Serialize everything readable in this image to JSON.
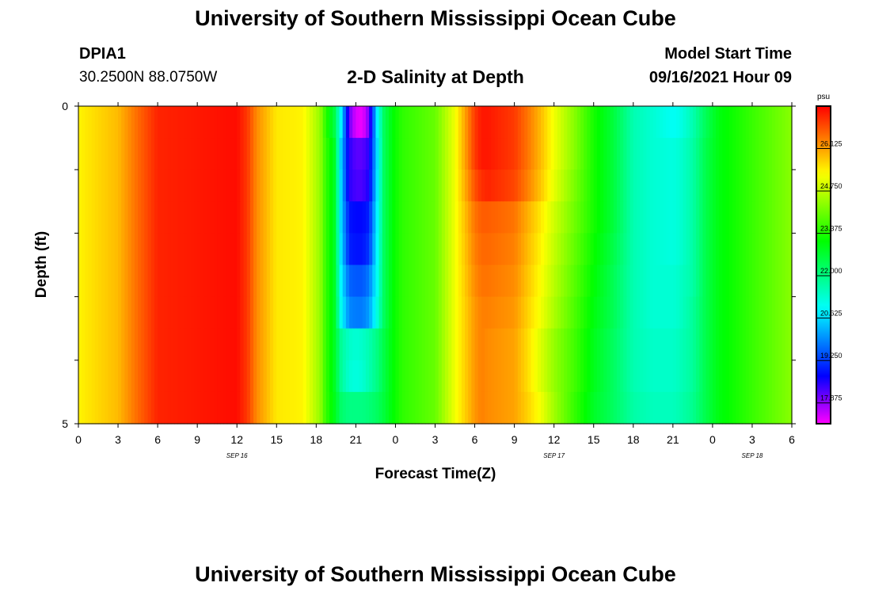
{
  "header": {
    "title": "University of Southern Mississippi Ocean Cube",
    "station_id": "DPIA1",
    "station_coords": "30.2500N  88.0750W",
    "plot_title": "2-D Salinity at Depth",
    "model_label": "Model Start Time",
    "model_time": "09/16/2021 Hour 09"
  },
  "footer": {
    "title": "University of Southern Mississippi Ocean Cube"
  },
  "chart_data": {
    "type": "heatmap",
    "title": "2-D Salinity at Depth",
    "xlabel": "Forecast Time(Z)",
    "ylabel": "Depth (ft)",
    "x_hours_from_sep16_00z": [
      0,
      54
    ],
    "y_range_ft": [
      0,
      5
    ],
    "x_tick_labels": [
      "0",
      "3",
      "6",
      "9",
      "12",
      "15",
      "18",
      "21",
      "0",
      "3",
      "6",
      "9",
      "12",
      "15",
      "18",
      "21",
      "0",
      "3",
      "6"
    ],
    "y_tick_labels": [
      "0",
      "5"
    ],
    "date_labels": [
      {
        "label": "SEP 16",
        "hour": 12
      },
      {
        "label": "SEP 17",
        "hour": 36
      },
      {
        "label": "SEP 18",
        "hour": 51
      }
    ],
    "colorbar": {
      "unit": "psu",
      "min": 17.2,
      "max": 27.5,
      "tick_values": [
        26.125,
        24.75,
        23.375,
        22.0,
        20.625,
        19.25,
        17.875
      ],
      "tick_labels": [
        "26.125",
        "24.750",
        "23.375",
        "22.000",
        "20.625",
        "19.250",
        "17.875"
      ]
    },
    "depth_levels_ft": [
      0.25,
      0.75,
      1.25,
      1.75,
      2.25,
      2.75,
      3.25,
      3.75,
      4.25,
      4.75
    ],
    "series": [
      {
        "name": "salinity_by_hour",
        "unit": "psu",
        "hours": [
          0,
          3,
          4.5,
          6,
          9,
          12,
          12.8,
          13.5,
          15,
          17,
          18.3,
          18.7,
          19.4,
          19.9,
          20.5,
          21.0,
          21.5,
          22.0,
          22.6,
          23.1,
          23.8,
          24.5,
          27,
          28.5,
          30,
          30.5,
          31,
          33,
          34,
          35,
          36,
          37.5,
          39,
          40.5,
          42,
          43.5,
          45,
          45.5,
          46.5,
          47.5,
          48.5,
          51,
          54
        ],
        "values_top_to_bottom": [
          [
            25.4,
            25.9,
            26.6,
            27.2,
            27.3,
            27.4,
            27.0,
            26.3,
            25.5,
            25.4,
            24.4,
            23.5,
            22.5,
            20.8,
            18.1,
            17.4,
            17.3,
            18.0,
            20.8,
            22.3,
            23.1,
            23.5,
            24.0,
            25.2,
            27.0,
            27.3,
            27.3,
            27.0,
            26.5,
            25.9,
            25.2,
            24.3,
            23.3,
            22.6,
            21.6,
            21.3,
            21.0,
            21.1,
            21.6,
            22.4,
            23.0,
            23.6,
            24.3
          ],
          [
            25.4,
            25.9,
            26.6,
            27.2,
            27.3,
            27.4,
            27.0,
            26.3,
            25.5,
            25.4,
            24.4,
            23.6,
            22.8,
            20.4,
            18.5,
            18.2,
            18.2,
            18.5,
            20.6,
            22.3,
            23.1,
            23.5,
            24.0,
            25.2,
            27.0,
            27.3,
            27.3,
            27.0,
            26.5,
            25.9,
            25.2,
            24.3,
            23.3,
            22.6,
            21.6,
            21.3,
            21.2,
            21.3,
            21.7,
            22.5,
            23.0,
            23.6,
            24.3
          ],
          [
            25.4,
            25.9,
            26.6,
            27.2,
            27.3,
            27.4,
            27.0,
            26.3,
            25.5,
            25.4,
            24.4,
            23.6,
            22.8,
            20.5,
            18.5,
            18.3,
            18.3,
            18.6,
            20.7,
            22.3,
            23.1,
            23.5,
            24.0,
            25.2,
            26.8,
            27.1,
            27.2,
            26.9,
            26.4,
            25.8,
            25.1,
            24.2,
            23.3,
            22.6,
            21.6,
            21.3,
            21.2,
            21.3,
            21.7,
            22.5,
            23.0,
            23.6,
            24.3
          ],
          [
            25.4,
            25.9,
            26.6,
            27.2,
            27.3,
            27.4,
            27.0,
            26.3,
            25.5,
            25.4,
            24.4,
            23.6,
            22.8,
            20.5,
            18.9,
            18.8,
            18.8,
            19.0,
            20.8,
            22.3,
            23.1,
            23.5,
            24.0,
            25.2,
            26.5,
            26.7,
            26.7,
            26.5,
            26.0,
            25.5,
            24.9,
            24.1,
            23.3,
            22.6,
            21.6,
            21.3,
            21.2,
            21.3,
            21.7,
            22.5,
            23.0,
            23.6,
            24.3
          ],
          [
            25.4,
            25.9,
            26.6,
            27.2,
            27.3,
            27.4,
            27.0,
            26.3,
            25.5,
            25.4,
            24.4,
            23.6,
            22.8,
            20.6,
            19.0,
            18.9,
            18.9,
            19.2,
            20.9,
            22.3,
            23.1,
            23.5,
            24.0,
            25.2,
            26.4,
            26.6,
            26.6,
            26.4,
            25.9,
            25.4,
            24.8,
            24.0,
            23.2,
            22.5,
            21.6,
            21.3,
            21.2,
            21.3,
            21.7,
            22.5,
            23.0,
            23.6,
            24.3
          ],
          [
            25.4,
            25.9,
            26.6,
            27.2,
            27.3,
            27.4,
            27.0,
            26.3,
            25.5,
            25.4,
            24.4,
            23.6,
            22.8,
            20.8,
            19.6,
            19.5,
            19.5,
            19.8,
            21.0,
            22.3,
            23.1,
            23.5,
            24.0,
            25.2,
            26.3,
            26.5,
            26.5,
            26.3,
            25.8,
            25.3,
            24.7,
            23.9,
            23.1,
            22.4,
            21.6,
            21.3,
            21.3,
            21.4,
            21.7,
            22.5,
            23.0,
            23.6,
            24.3
          ],
          [
            25.4,
            25.9,
            26.6,
            27.2,
            27.3,
            27.4,
            27.0,
            26.3,
            25.5,
            25.4,
            24.4,
            23.6,
            22.8,
            21.0,
            19.9,
            19.8,
            19.8,
            20.1,
            21.2,
            22.3,
            23.1,
            23.5,
            24.0,
            25.2,
            26.2,
            26.4,
            26.4,
            26.2,
            25.7,
            25.2,
            24.6,
            23.8,
            23.0,
            22.4,
            21.6,
            21.3,
            21.3,
            21.4,
            21.8,
            22.5,
            23.0,
            23.6,
            24.3
          ],
          [
            25.4,
            25.9,
            26.6,
            27.2,
            27.3,
            27.4,
            27.0,
            26.3,
            25.5,
            25.4,
            24.4,
            23.6,
            22.8,
            21.8,
            21.4,
            21.3,
            21.4,
            21.6,
            22.0,
            22.5,
            23.1,
            23.5,
            24.0,
            25.2,
            26.2,
            26.4,
            26.3,
            26.1,
            25.6,
            25.0,
            24.4,
            23.7,
            22.9,
            22.3,
            21.6,
            21.4,
            21.4,
            21.5,
            21.8,
            22.5,
            23.0,
            23.6,
            24.3
          ],
          [
            25.4,
            25.9,
            26.6,
            27.2,
            27.3,
            27.4,
            27.0,
            26.3,
            25.5,
            25.4,
            24.4,
            23.6,
            22.8,
            21.8,
            21.3,
            21.2,
            21.3,
            21.6,
            22.0,
            22.5,
            23.1,
            23.5,
            24.0,
            25.2,
            26.2,
            26.4,
            26.3,
            26.1,
            25.6,
            25.0,
            24.4,
            23.7,
            22.9,
            22.3,
            21.6,
            21.4,
            21.4,
            21.5,
            21.8,
            22.5,
            23.0,
            23.6,
            24.3
          ],
          [
            25.4,
            25.9,
            26.6,
            27.2,
            27.3,
            27.4,
            27.0,
            26.3,
            25.5,
            25.4,
            24.4,
            23.6,
            22.9,
            22.2,
            22.0,
            22.0,
            22.0,
            22.1,
            22.3,
            22.6,
            23.1,
            23.5,
            24.0,
            25.2,
            26.2,
            26.4,
            26.3,
            26.1,
            25.7,
            25.2,
            24.5,
            23.6,
            22.8,
            22.3,
            21.7,
            21.5,
            21.5,
            21.6,
            21.9,
            22.5,
            23.0,
            23.6,
            24.3
          ]
        ]
      }
    ]
  }
}
